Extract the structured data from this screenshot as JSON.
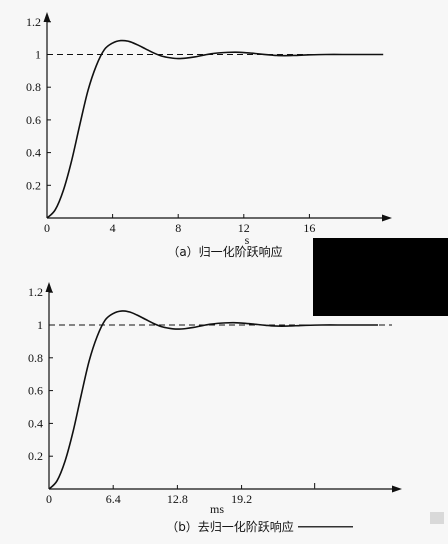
{
  "chart_data": [
    {
      "type": "line",
      "caption": "（a）归一化阶跃响应",
      "xlabel": "s",
      "ylabel": "",
      "xlim": [
        0,
        21
      ],
      "ylim": [
        0,
        1.3
      ],
      "xticks": [
        0,
        4,
        8,
        12,
        16
      ],
      "xtick_labels": [
        "0",
        "4",
        "8",
        "12",
        "16"
      ],
      "yticks": [
        0.2,
        0.4,
        0.6,
        0.8,
        1,
        1.2
      ],
      "ytick_labels": [
        "0.2",
        "0.4",
        "0.6",
        "0.8",
        "1",
        "1.2"
      ],
      "reference_line": {
        "y": 1,
        "style": "dashed"
      },
      "series": [
        {
          "x": [
            0,
            0.5,
            1,
            1.5,
            2,
            2.5,
            3,
            3.5,
            4,
            4.5,
            5,
            5.5,
            6,
            6.5,
            7,
            7.5,
            8,
            8.5,
            9,
            9.5,
            10,
            10.5,
            11,
            11.5,
            12,
            12.5,
            13,
            13.5,
            14,
            14.5,
            15,
            15.5,
            16,
            17,
            18,
            19,
            20.5
          ],
          "y": [
            0,
            0.05,
            0.17,
            0.35,
            0.57,
            0.78,
            0.93,
            1.03,
            1.07,
            1.085,
            1.08,
            1.06,
            1.035,
            1.01,
            0.99,
            0.98,
            0.975,
            0.978,
            0.985,
            0.995,
            1.004,
            1.01,
            1.013,
            1.014,
            1.012,
            1.008,
            1.003,
            0.998,
            0.994,
            0.993,
            0.994,
            0.996,
            0.998,
            1.0,
            1.0,
            1.0,
            1.0
          ]
        }
      ]
    },
    {
      "type": "line",
      "caption": "（b）去归一化阶跃响应",
      "xlabel": "ms",
      "ylabel": "",
      "xlim": [
        0,
        33.6
      ],
      "ylim": [
        0,
        1.3
      ],
      "xticks": [
        0,
        6.4,
        12.8,
        19.2
      ],
      "xtick_labels": [
        "0",
        "6.4",
        "12.8",
        "19.2"
      ],
      "yticks": [
        0.2,
        0.4,
        0.6,
        0.8,
        1,
        1.2
      ],
      "ytick_labels": [
        "0.2",
        "0.4",
        "0.6",
        "0.8",
        "1",
        "1.2"
      ],
      "reference_line": {
        "y": 1,
        "style": "dashed"
      },
      "series": [
        {
          "x": [
            0,
            0.8,
            1.6,
            2.4,
            3.2,
            4.0,
            4.8,
            5.6,
            6.4,
            7.2,
            8.0,
            8.8,
            9.6,
            10.4,
            11.2,
            12.0,
            12.8,
            13.6,
            14.4,
            15.2,
            16.0,
            16.8,
            17.6,
            18.4,
            19.2,
            20.0,
            20.8,
            21.6,
            22.4,
            23.2,
            24.0,
            24.8,
            25.6,
            27.2,
            28.8,
            30.4,
            32.8
          ],
          "y": [
            0,
            0.05,
            0.17,
            0.35,
            0.57,
            0.78,
            0.93,
            1.03,
            1.07,
            1.085,
            1.08,
            1.06,
            1.035,
            1.01,
            0.99,
            0.98,
            0.975,
            0.978,
            0.985,
            0.995,
            1.004,
            1.01,
            1.013,
            1.014,
            1.012,
            1.008,
            1.003,
            0.998,
            0.994,
            0.993,
            0.994,
            0.996,
            0.998,
            1.0,
            1.0,
            1.0,
            1.0
          ]
        }
      ]
    }
  ],
  "colors": {
    "ink": "#111111",
    "paper": "#f7f7f7",
    "redaction": "#000000"
  }
}
